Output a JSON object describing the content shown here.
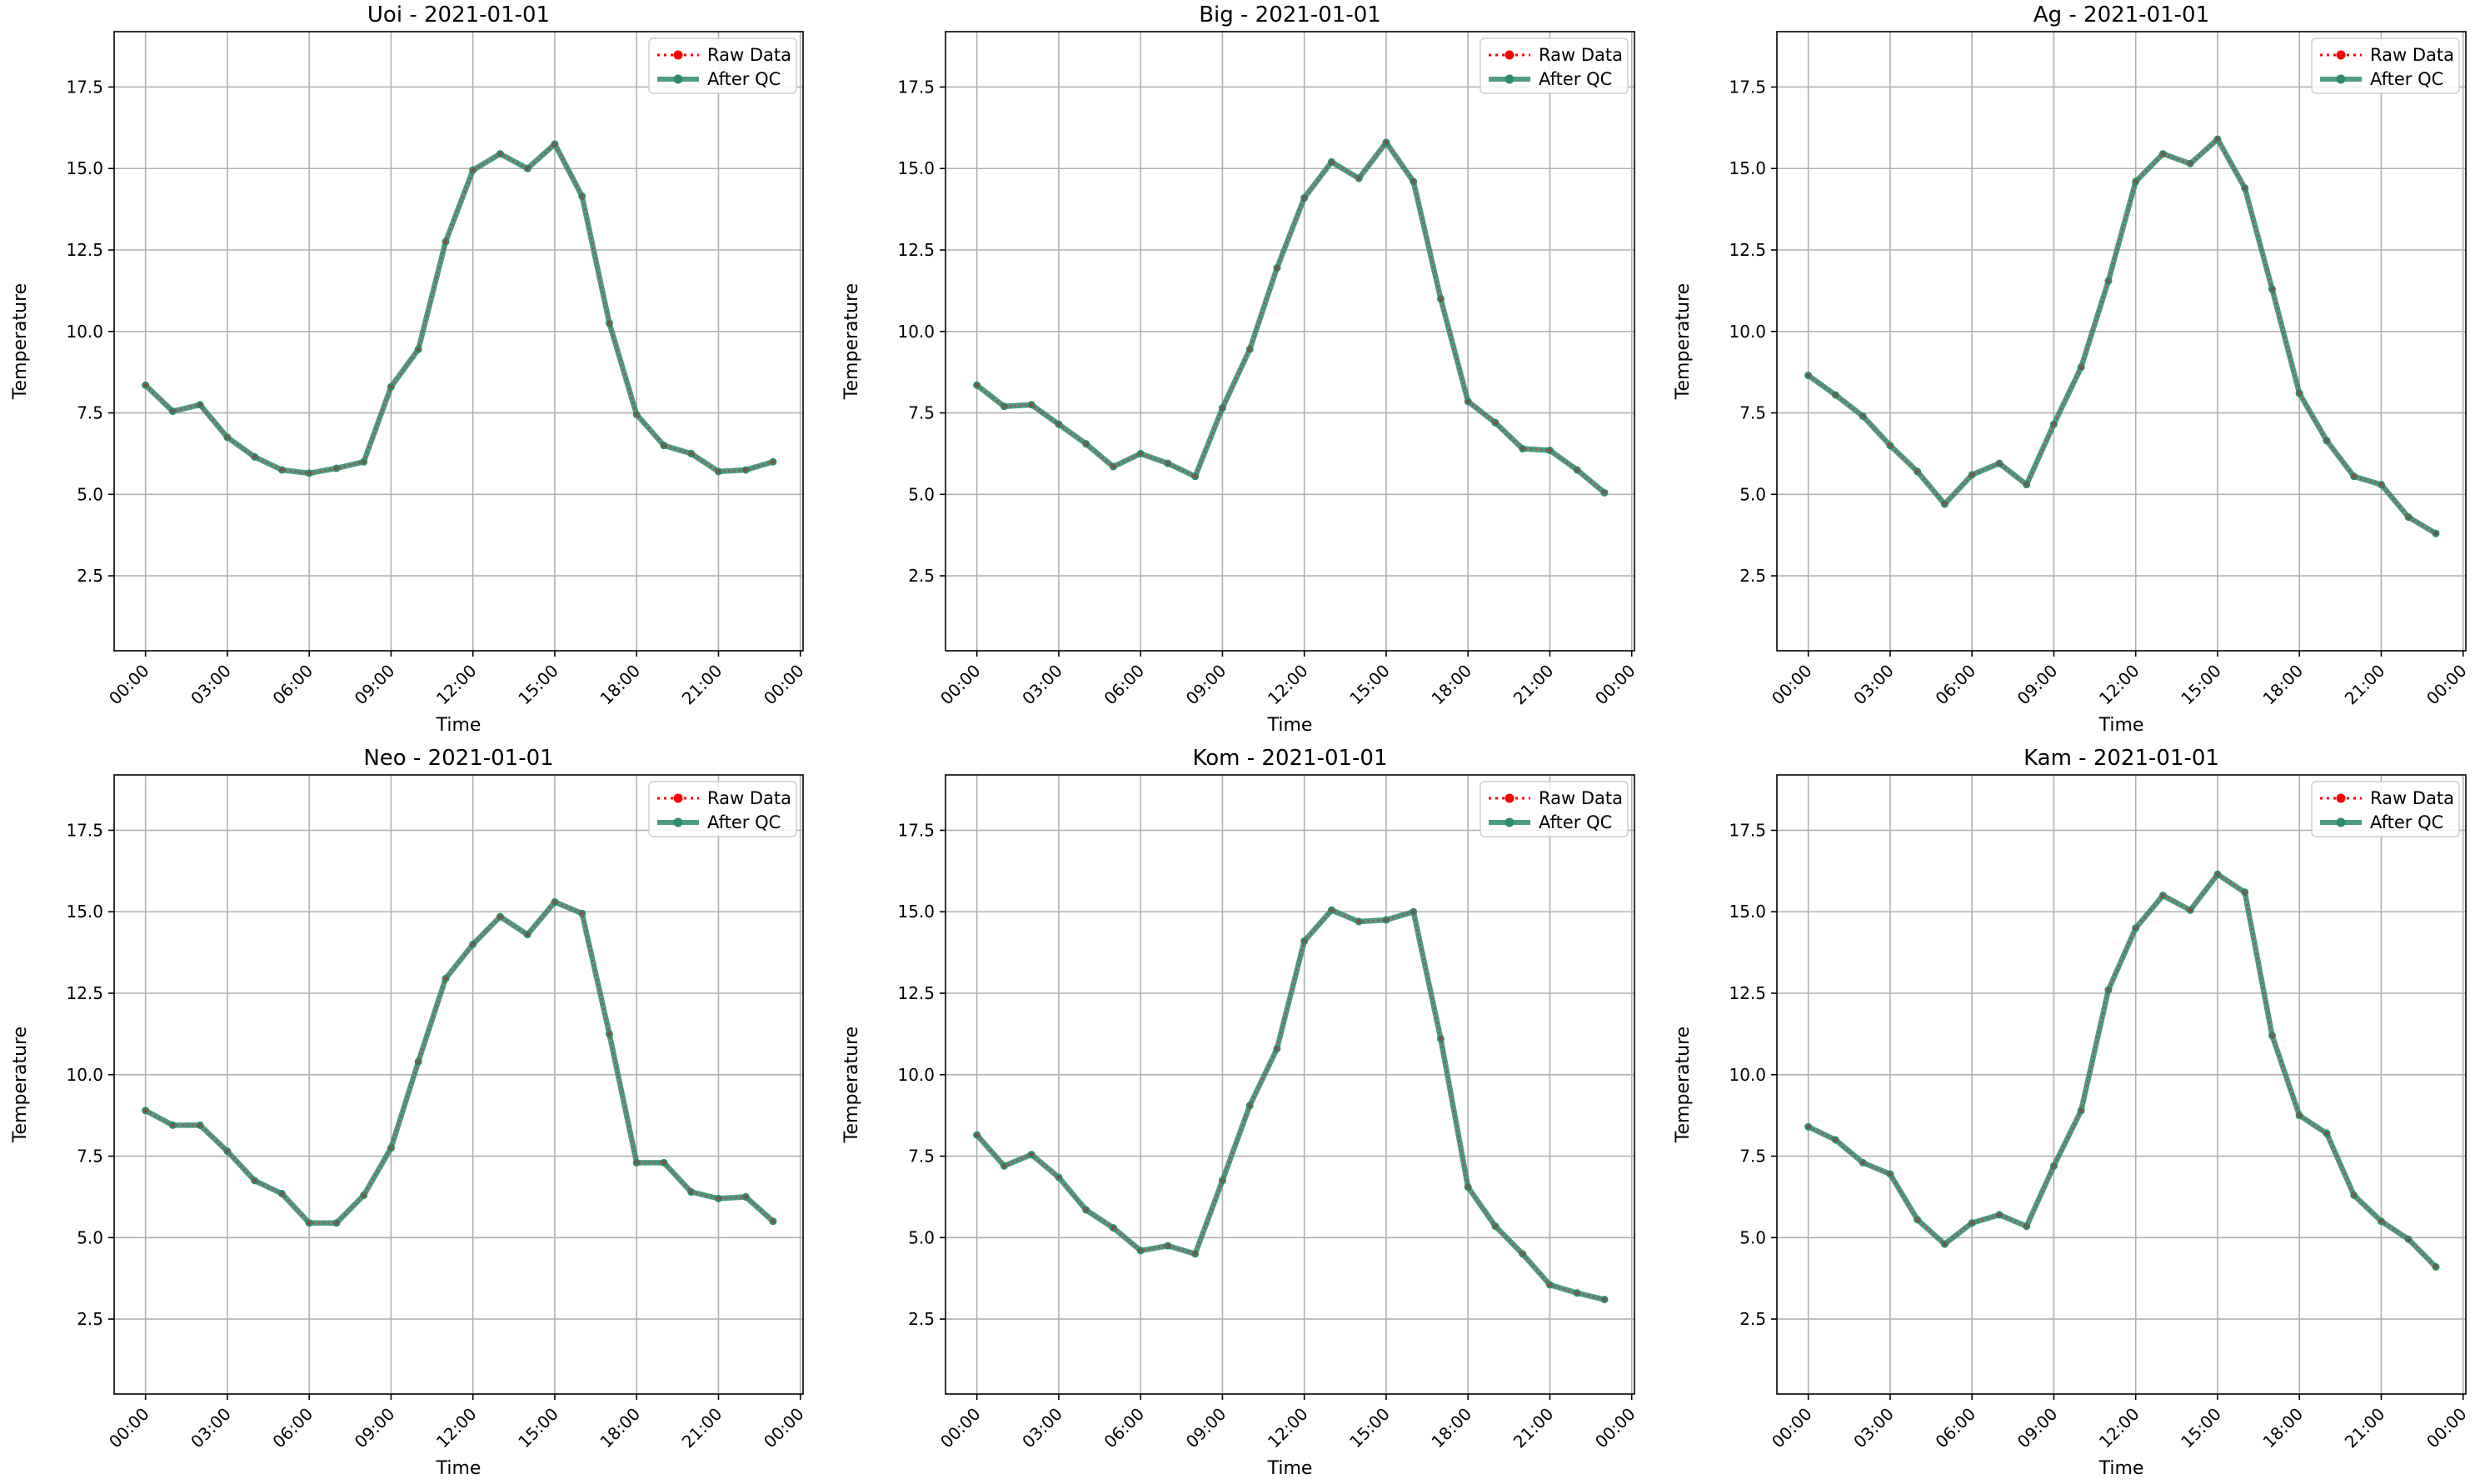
{
  "colors": {
    "raw": "#ff0000",
    "qc": "#2e8b6f",
    "grid": "#b0b0b0",
    "axes": "#000000"
  },
  "legend": {
    "placement": "top-right",
    "raw_label": "Raw Data",
    "qc_label": "After QC"
  },
  "chart_data": [
    {
      "type": "line",
      "title": "Uoi - 2021-01-01",
      "xlabel": "Time",
      "ylabel": "Temperature",
      "ylim": [
        0.2,
        19.2
      ],
      "yticks": [
        2.5,
        5.0,
        7.5,
        10.0,
        12.5,
        15.0,
        17.5
      ],
      "xticks": [
        "00:00",
        "03:00",
        "06:00",
        "09:00",
        "12:00",
        "15:00",
        "18:00",
        "21:00",
        "00:00"
      ],
      "grid": true,
      "x": [
        "00:00",
        "01:00",
        "02:00",
        "03:00",
        "04:00",
        "05:00",
        "06:00",
        "07:00",
        "08:00",
        "09:00",
        "10:00",
        "11:00",
        "12:00",
        "13:00",
        "14:00",
        "15:00",
        "16:00",
        "17:00",
        "18:00",
        "19:00",
        "20:00",
        "21:00",
        "22:00",
        "23:00"
      ],
      "series": [
        {
          "name": "Raw Data",
          "values": [
            8.35,
            7.55,
            7.75,
            6.75,
            6.15,
            5.75,
            5.65,
            5.8,
            6.0,
            8.3,
            9.45,
            12.75,
            14.95,
            15.45,
            15.0,
            15.75,
            14.15,
            10.25,
            7.45,
            6.5,
            6.25,
            5.7,
            5.75,
            6.0
          ]
        },
        {
          "name": "After QC",
          "values": [
            8.35,
            7.55,
            7.75,
            6.75,
            6.15,
            5.75,
            5.65,
            5.8,
            6.0,
            8.3,
            9.45,
            12.75,
            14.95,
            15.45,
            15.0,
            15.75,
            14.15,
            10.25,
            7.45,
            6.5,
            6.25,
            5.7,
            5.75,
            6.0
          ]
        }
      ]
    },
    {
      "type": "line",
      "title": "Big - 2021-01-01",
      "xlabel": "Time",
      "ylabel": "Temperature",
      "ylim": [
        0.2,
        19.2
      ],
      "yticks": [
        2.5,
        5.0,
        7.5,
        10.0,
        12.5,
        15.0,
        17.5
      ],
      "xticks": [
        "00:00",
        "03:00",
        "06:00",
        "09:00",
        "12:00",
        "15:00",
        "18:00",
        "21:00",
        "00:00"
      ],
      "grid": true,
      "x": [
        "00:00",
        "01:00",
        "02:00",
        "03:00",
        "04:00",
        "05:00",
        "06:00",
        "07:00",
        "08:00",
        "09:00",
        "10:00",
        "11:00",
        "12:00",
        "13:00",
        "14:00",
        "15:00",
        "16:00",
        "17:00",
        "18:00",
        "19:00",
        "20:00",
        "21:00",
        "22:00",
        "23:00"
      ],
      "series": [
        {
          "name": "Raw Data",
          "values": [
            8.35,
            7.7,
            7.75,
            7.15,
            6.55,
            5.85,
            6.25,
            5.95,
            5.55,
            7.65,
            9.45,
            11.95,
            14.1,
            15.2,
            14.7,
            15.8,
            14.6,
            11.0,
            7.85,
            7.2,
            6.4,
            6.35,
            5.75,
            5.05
          ]
        },
        {
          "name": "After QC",
          "values": [
            8.35,
            7.7,
            7.75,
            7.15,
            6.55,
            5.85,
            6.25,
            5.95,
            5.55,
            7.65,
            9.45,
            11.95,
            14.1,
            15.2,
            14.7,
            15.8,
            14.6,
            11.0,
            7.85,
            7.2,
            6.4,
            6.35,
            5.75,
            5.05
          ]
        }
      ]
    },
    {
      "type": "line",
      "title": "Ag - 2021-01-01",
      "xlabel": "Time",
      "ylabel": "Temperature",
      "ylim": [
        0.2,
        19.2
      ],
      "yticks": [
        2.5,
        5.0,
        7.5,
        10.0,
        12.5,
        15.0,
        17.5
      ],
      "xticks": [
        "00:00",
        "03:00",
        "06:00",
        "09:00",
        "12:00",
        "15:00",
        "18:00",
        "21:00",
        "00:00"
      ],
      "grid": true,
      "x": [
        "00:00",
        "01:00",
        "02:00",
        "03:00",
        "04:00",
        "05:00",
        "06:00",
        "07:00",
        "08:00",
        "09:00",
        "10:00",
        "11:00",
        "12:00",
        "13:00",
        "14:00",
        "15:00",
        "16:00",
        "17:00",
        "18:00",
        "19:00",
        "20:00",
        "21:00",
        "22:00",
        "23:00"
      ],
      "series": [
        {
          "name": "Raw Data",
          "values": [
            8.65,
            8.05,
            7.4,
            6.5,
            5.7,
            4.7,
            5.6,
            5.95,
            5.3,
            7.15,
            8.9,
            11.55,
            14.6,
            15.45,
            15.15,
            15.9,
            14.4,
            11.3,
            8.1,
            6.65,
            5.55,
            5.3,
            4.3,
            3.8
          ]
        },
        {
          "name": "After QC",
          "values": [
            8.65,
            8.05,
            7.4,
            6.5,
            5.7,
            4.7,
            5.6,
            5.95,
            5.3,
            7.15,
            8.9,
            11.55,
            14.6,
            15.45,
            15.15,
            15.9,
            14.4,
            11.3,
            8.1,
            6.65,
            5.55,
            5.3,
            4.3,
            3.8
          ]
        }
      ]
    },
    {
      "type": "line",
      "title": "Neo - 2021-01-01",
      "xlabel": "Time",
      "ylabel": "Temperature",
      "ylim": [
        0.2,
        19.2
      ],
      "yticks": [
        2.5,
        5.0,
        7.5,
        10.0,
        12.5,
        15.0,
        17.5
      ],
      "xticks": [
        "00:00",
        "03:00",
        "06:00",
        "09:00",
        "12:00",
        "15:00",
        "18:00",
        "21:00",
        "00:00"
      ],
      "grid": true,
      "x": [
        "00:00",
        "01:00",
        "02:00",
        "03:00",
        "04:00",
        "05:00",
        "06:00",
        "07:00",
        "08:00",
        "09:00",
        "10:00",
        "11:00",
        "12:00",
        "13:00",
        "14:00",
        "15:00",
        "16:00",
        "17:00",
        "18:00",
        "19:00",
        "20:00",
        "21:00",
        "22:00",
        "23:00"
      ],
      "series": [
        {
          "name": "Raw Data",
          "values": [
            8.9,
            8.45,
            8.45,
            7.65,
            6.75,
            6.35,
            5.45,
            5.45,
            6.3,
            7.75,
            10.4,
            12.95,
            14.0,
            14.85,
            14.3,
            15.3,
            14.95,
            11.25,
            7.3,
            7.3,
            6.4,
            6.2,
            6.25,
            5.5
          ]
        },
        {
          "name": "After QC",
          "values": [
            8.9,
            8.45,
            8.45,
            7.65,
            6.75,
            6.35,
            5.45,
            5.45,
            6.3,
            7.75,
            10.4,
            12.95,
            14.0,
            14.85,
            14.3,
            15.3,
            14.95,
            11.25,
            7.3,
            7.3,
            6.4,
            6.2,
            6.25,
            5.5
          ]
        }
      ]
    },
    {
      "type": "line",
      "title": "Kom - 2021-01-01",
      "xlabel": "Time",
      "ylabel": "Temperature",
      "ylim": [
        0.2,
        19.2
      ],
      "yticks": [
        2.5,
        5.0,
        7.5,
        10.0,
        12.5,
        15.0,
        17.5
      ],
      "xticks": [
        "00:00",
        "03:00",
        "06:00",
        "09:00",
        "12:00",
        "15:00",
        "18:00",
        "21:00",
        "00:00"
      ],
      "grid": true,
      "x": [
        "00:00",
        "01:00",
        "02:00",
        "03:00",
        "04:00",
        "05:00",
        "06:00",
        "07:00",
        "08:00",
        "09:00",
        "10:00",
        "11:00",
        "12:00",
        "13:00",
        "14:00",
        "15:00",
        "16:00",
        "17:00",
        "18:00",
        "19:00",
        "20:00",
        "21:00",
        "22:00",
        "23:00"
      ],
      "series": [
        {
          "name": "Raw Data",
          "values": [
            8.15,
            7.2,
            7.55,
            6.85,
            5.85,
            5.3,
            4.6,
            4.75,
            4.5,
            6.75,
            9.05,
            10.8,
            14.1,
            15.05,
            14.7,
            14.75,
            15.0,
            11.1,
            6.55,
            5.35,
            4.5,
            3.55,
            3.3,
            3.1
          ]
        },
        {
          "name": "After QC",
          "values": [
            8.15,
            7.2,
            7.55,
            6.85,
            5.85,
            5.3,
            4.6,
            4.75,
            4.5,
            6.75,
            9.05,
            10.8,
            14.1,
            15.05,
            14.7,
            14.75,
            15.0,
            11.1,
            6.55,
            5.35,
            4.5,
            3.55,
            3.3,
            3.1
          ]
        }
      ]
    },
    {
      "type": "line",
      "title": "Kam - 2021-01-01",
      "xlabel": "Time",
      "ylabel": "Temperature",
      "ylim": [
        0.2,
        19.2
      ],
      "yticks": [
        2.5,
        5.0,
        7.5,
        10.0,
        12.5,
        15.0,
        17.5
      ],
      "xticks": [
        "00:00",
        "03:00",
        "06:00",
        "09:00",
        "12:00",
        "15:00",
        "18:00",
        "21:00",
        "00:00"
      ],
      "grid": true,
      "x": [
        "00:00",
        "01:00",
        "02:00",
        "03:00",
        "04:00",
        "05:00",
        "06:00",
        "07:00",
        "08:00",
        "09:00",
        "10:00",
        "11:00",
        "12:00",
        "13:00",
        "14:00",
        "15:00",
        "16:00",
        "17:00",
        "18:00",
        "19:00",
        "20:00",
        "21:00",
        "22:00",
        "23:00"
      ],
      "series": [
        {
          "name": "Raw Data",
          "values": [
            8.4,
            8.0,
            7.3,
            6.95,
            5.55,
            4.8,
            5.45,
            5.7,
            5.35,
            7.2,
            8.9,
            12.6,
            14.5,
            15.5,
            15.05,
            16.15,
            15.6,
            11.2,
            8.75,
            8.2,
            6.3,
            5.5,
            4.95,
            4.1
          ]
        },
        {
          "name": "After QC",
          "values": [
            8.4,
            8.0,
            7.3,
            6.95,
            5.55,
            4.8,
            5.45,
            5.7,
            5.35,
            7.2,
            8.9,
            12.6,
            14.5,
            15.5,
            15.05,
            16.15,
            15.6,
            11.2,
            8.75,
            8.2,
            6.3,
            5.5,
            4.95,
            4.1
          ]
        }
      ]
    }
  ]
}
